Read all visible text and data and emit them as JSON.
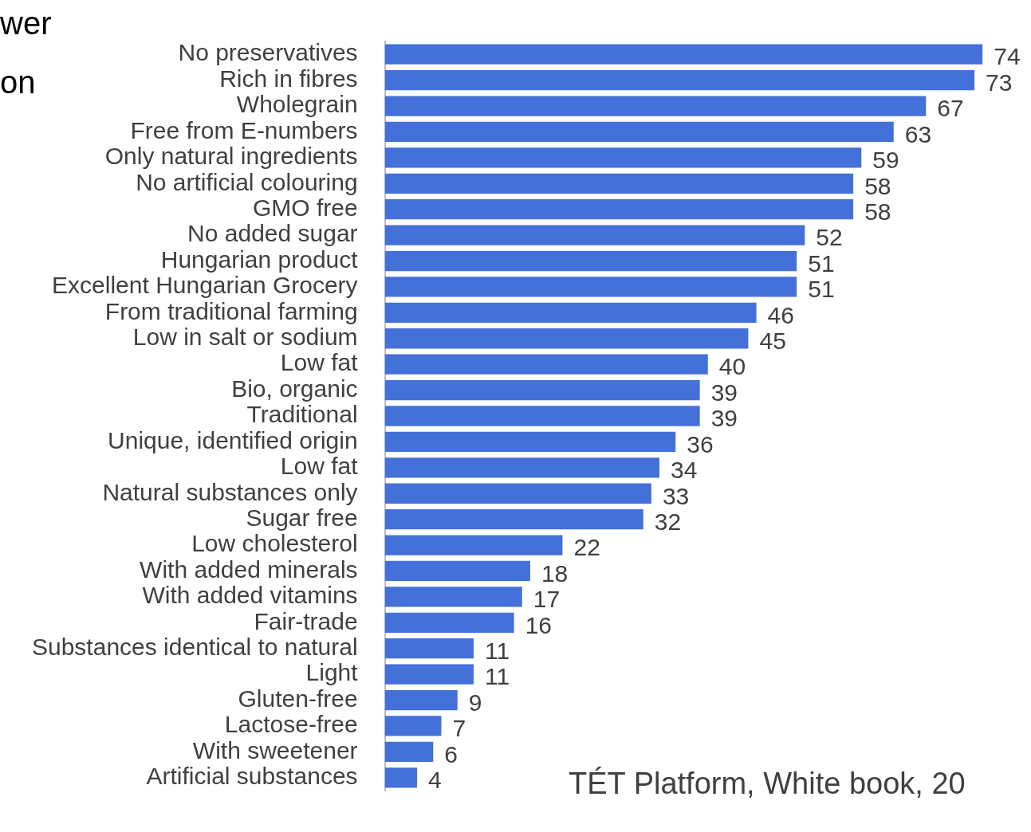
{
  "chart_data": {
    "type": "bar",
    "orientation": "horizontal",
    "categories": [
      "No preservatives",
      "Rich in fibres",
      "Wholegrain",
      "Free from E-numbers",
      "Only natural ingredients",
      "No artificial colouring",
      "GMO free",
      "No added sugar",
      "Hungarian product",
      "Excellent Hungarian Grocery",
      "From traditional farming",
      "Low in salt or sodium",
      "Low fat",
      "Bio, organic",
      "Traditional",
      "Unique, identified origin",
      "Low fat",
      "Natural substances only",
      "Sugar free",
      "Low cholesterol",
      "With added minerals",
      "With added vitamins",
      "Fair-trade",
      "Substances identical to natural",
      "Light",
      "Gluten-free",
      "Lactose-free",
      "With sweetener",
      "Artificial substances"
    ],
    "values": [
      74,
      73,
      67,
      63,
      59,
      58,
      58,
      52,
      51,
      51,
      46,
      45,
      40,
      39,
      39,
      36,
      34,
      33,
      32,
      22,
      18,
      17,
      16,
      11,
      11,
      9,
      7,
      6,
      4
    ],
    "color": "#4471d9",
    "data_labels": true,
    "tick_labels": "y",
    "annotations": [
      "wer",
      "on",
      "TÉT Platform, White book, 20"
    ]
  }
}
